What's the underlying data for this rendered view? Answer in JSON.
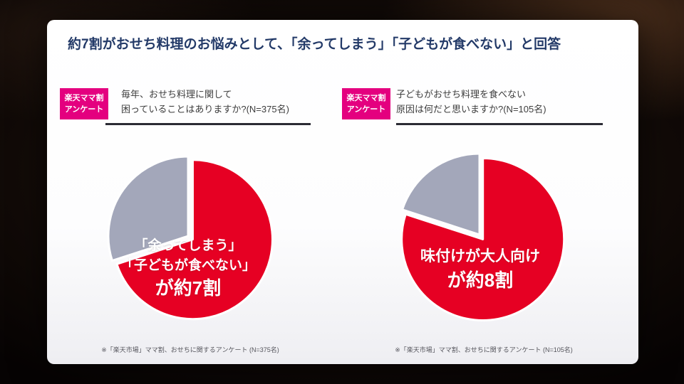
{
  "slide": {
    "title": "約7割がおせち料理のお悩みとして、「余ってしまう」「子どもが食べない」と回答",
    "panels": [
      {
        "badge_line1": "楽天ママ割",
        "badge_line2": "アンケート",
        "question_line1": "毎年、おせち料理に関して",
        "question_line2": "困っていることはありますか?(N=375名)",
        "label_lines": [
          "「余ってしまう」",
          "「子どもが食べない」"
        ],
        "label_big": "が約7割",
        "footnote": "※「楽天市場」ママ割、おせちに関するアンケート (N=375名)"
      },
      {
        "badge_line1": "楽天ママ割",
        "badge_line2": "アンケート",
        "question_line1": "子どもがおせち料理を食べない",
        "question_line2": "原因は何だと思いますか?(N=105名)",
        "label_lines": [
          "味付けが大人向け"
        ],
        "label_big": "が約8割",
        "footnote": "※「楽天市場」ママ割、おせちに関するアンケート (N=105名)"
      }
    ]
  },
  "colors": {
    "accent_red": "#e60023",
    "slice_gray": "#a3a7ba",
    "badge_magenta": "#e4007f",
    "title_navy": "#233a68"
  },
  "chart_data": [
    {
      "type": "pie",
      "title": "毎年、おせち料理に関して困っていることはありますか?(N=375名)",
      "start_angle": 0,
      "legend": "none",
      "slices": [
        {
          "label": "「余ってしまう」「子どもが食べない」",
          "value": 70,
          "color": "#e60023",
          "explode": 8
        },
        {
          "label": "",
          "value": 30,
          "color": "#a3a7ba",
          "explode": 0
        }
      ]
    },
    {
      "type": "pie",
      "title": "子どもがおせち料理を食べない原因は何だと思いますか?(N=105名)",
      "start_angle": 0,
      "legend": "none",
      "slices": [
        {
          "label": "味付けが大人向け",
          "value": 80,
          "color": "#e60023",
          "explode": 8
        },
        {
          "label": "",
          "value": 20,
          "color": "#a3a7ba",
          "explode": 0
        }
      ]
    }
  ]
}
